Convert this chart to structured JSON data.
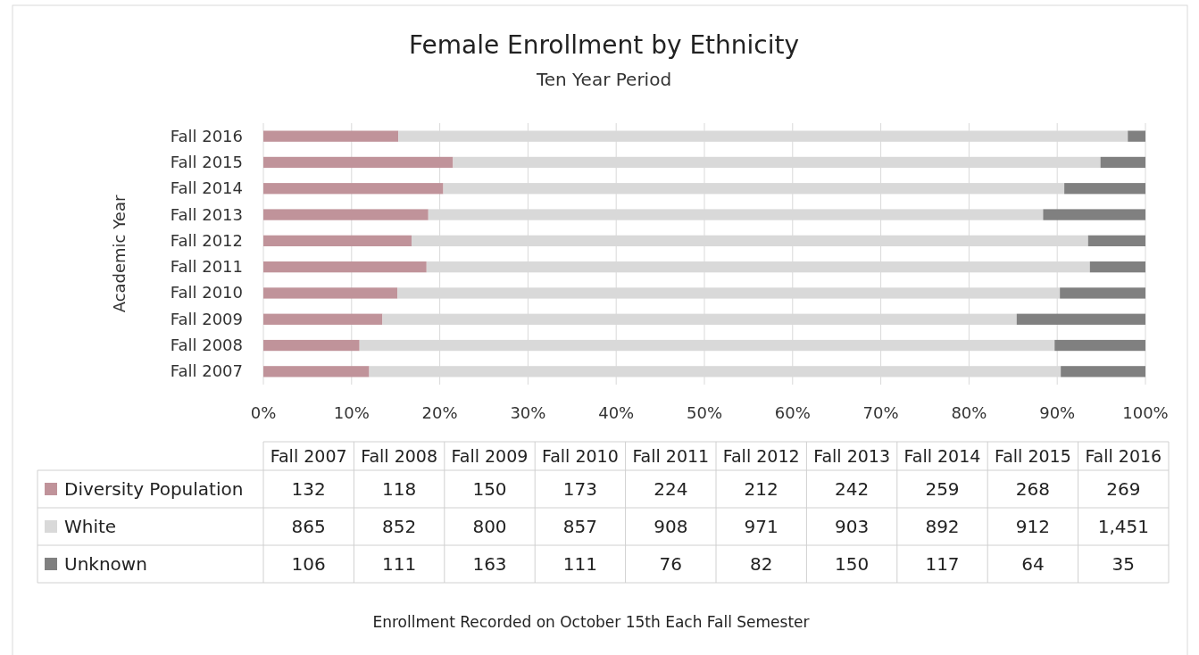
{
  "chart_data": [
    {
      "type": "bar",
      "orientation": "horizontal",
      "stacked": true,
      "title": "Female Enrollment by Ethnicity",
      "subtitle": "Ten Year Period",
      "ylabel": "Academic Year",
      "categories": [
        "Fall 2016",
        "Fall 2015",
        "Fall 2014",
        "Fall 2013",
        "Fall 2012",
        "Fall 2011",
        "Fall 2010",
        "Fall 2009",
        "Fall 2008",
        "Fall 2007"
      ],
      "series": [
        {
          "color": "#c0939a",
          "values": [
            15.3,
            21.5,
            20.4,
            18.7,
            16.8,
            18.5,
            15.2,
            13.5,
            10.9,
            12.0
          ]
        },
        {
          "color": "#d9d9d9",
          "values": [
            82.7,
            73.4,
            70.4,
            69.7,
            76.7,
            75.2,
            75.1,
            71.9,
            78.8,
            78.4
          ]
        },
        {
          "color": "#808080",
          "values": [
            2.0,
            5.1,
            9.2,
            11.6,
            6.5,
            6.3,
            9.7,
            14.6,
            10.3,
            9.6
          ]
        }
      ],
      "xlim": [
        0,
        100
      ],
      "xticks": [
        {
          "value": 0,
          "label": "0%"
        },
        {
          "value": 10,
          "label": "10%"
        },
        {
          "value": 20,
          "label": "20%"
        },
        {
          "value": 30,
          "label": "30%"
        },
        {
          "value": 40,
          "label": "40%"
        },
        {
          "value": 50,
          "label": "50%"
        },
        {
          "value": 60,
          "label": "60%"
        },
        {
          "value": 70,
          "label": "70%"
        },
        {
          "value": 80,
          "label": "80%"
        },
        {
          "value": 90,
          "label": "90%"
        },
        {
          "value": 100,
          "label": "100%"
        }
      ],
      "grid": "x"
    },
    {
      "type": "other",
      "categories": [
        "Fall 2007",
        "Fall 2008",
        "Fall 2009",
        "Fall 2010",
        "Fall 2011",
        "Fall 2012",
        "Fall 2013",
        "Fall 2014",
        "Fall 2015",
        "Fall 2016"
      ],
      "series": [
        {
          "name": "Diversity Population",
          "color": "#c0939a",
          "values": [
            132,
            118,
            150,
            173,
            224,
            212,
            242,
            259,
            268,
            269
          ],
          "value_labels": [
            "132",
            "118",
            "150",
            "173",
            "224",
            "212",
            "242",
            "259",
            "268",
            "269"
          ]
        },
        {
          "name": "White",
          "color": "#d9d9d9",
          "values": [
            865,
            852,
            800,
            857,
            908,
            971,
            903,
            892,
            912,
            1451
          ],
          "value_labels": [
            "865",
            "852",
            "800",
            "857",
            "908",
            "971",
            "903",
            "892",
            "912",
            "1,451"
          ]
        },
        {
          "name": "Unknown",
          "color": "#808080",
          "values": [
            106,
            111,
            163,
            111,
            76,
            82,
            150,
            117,
            64,
            35
          ],
          "value_labels": [
            "106",
            "111",
            "163",
            "111",
            "76",
            "82",
            "150",
            "117",
            "64",
            "35"
          ]
        }
      ],
      "legend": "bottom",
      "annotations": [
        "Enrollment Recorded on October 15th Each Fall Semester"
      ]
    }
  ]
}
